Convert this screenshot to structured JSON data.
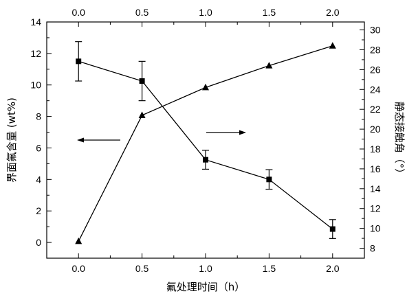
{
  "chart_data": {
    "type": "line",
    "xlabel": "氟处理时间（h）",
    "ylabel_left": "界面氟含量 (wt%)",
    "ylabel_right": "静态接触角（°）",
    "xlim": [
      -0.25,
      2.25
    ],
    "ylim_left": [
      -1,
      14
    ],
    "ylim_right": [
      7,
      30.8
    ],
    "x_ticks": [
      0.0,
      0.5,
      1.0,
      1.5,
      2.0
    ],
    "x_tick_labels": [
      "0.0",
      "0.5",
      "1.0",
      "1.5",
      "2.0"
    ],
    "y_left_ticks": [
      0,
      2,
      4,
      6,
      8,
      10,
      12,
      14
    ],
    "y_right_ticks": [
      8,
      10,
      12,
      14,
      16,
      18,
      20,
      22,
      24,
      26,
      28,
      30
    ],
    "grid": false,
    "series": [
      {
        "axis": "left",
        "marker": "square",
        "x": [
          0.0,
          0.5,
          1.0,
          1.5,
          2.0
        ],
        "y": [
          11.5,
          10.25,
          5.25,
          4.0,
          0.85
        ],
        "err": [
          1.25,
          1.25,
          0.6,
          0.62,
          0.6
        ]
      },
      {
        "axis": "right",
        "marker": "triangle",
        "x": [
          0.0,
          0.5,
          1.0,
          1.5,
          2.0
        ],
        "y": [
          8.7,
          21.4,
          24.2,
          26.4,
          28.4
        ]
      }
    ],
    "annotations": [
      {
        "type": "arrow",
        "direction": "left",
        "indicates": "left axis"
      },
      {
        "type": "arrow",
        "direction": "right",
        "indicates": "right axis"
      }
    ],
    "colors": {
      "line": "#000000",
      "marker": "#000000"
    }
  }
}
